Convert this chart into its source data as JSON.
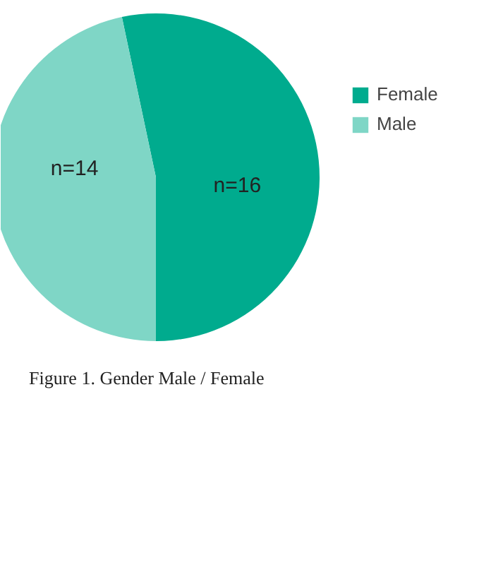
{
  "chart_data": {
    "type": "pie",
    "categories": [
      "Female",
      "Male"
    ],
    "values": [
      16,
      14
    ],
    "colors": [
      "#00ab8e",
      "#7fd6c6"
    ],
    "value_labels": [
      "n=16",
      "n=14"
    ],
    "legend": "top right",
    "annotations": [
      "Figure 1. Gender Male / Female"
    ]
  }
}
